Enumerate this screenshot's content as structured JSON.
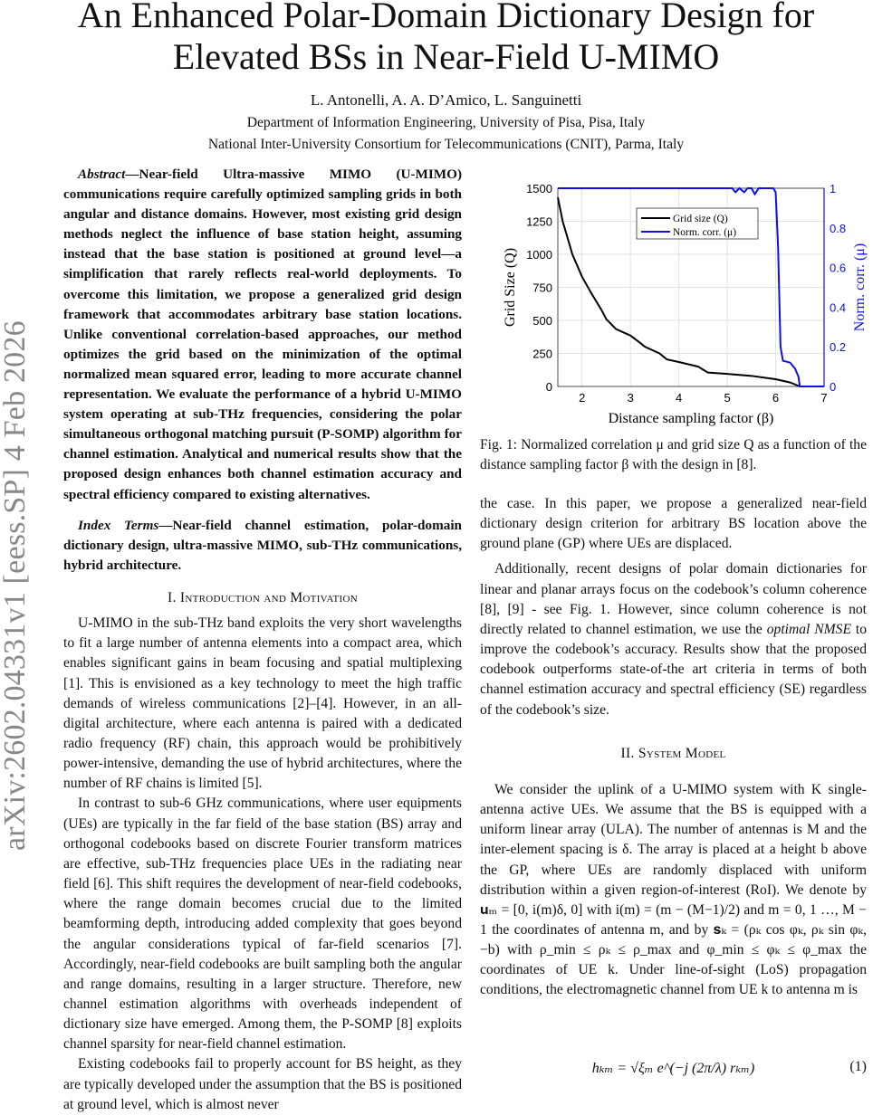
{
  "title_lines": [
    "An Enhanced Polar-Domain Dictionary Design for",
    "Elevated BSs in Near-Field U-MIMO"
  ],
  "authors": "L. Antonelli, A. A. D’Amico, L. Sanguinetti",
  "affiliations": [
    "Department of Information Engineering, University of Pisa, Pisa, Italy",
    "National Inter-University Consortium for Telecommunications (CNIT), Parma, Italy"
  ],
  "arxiv_stamp": "arXiv:2602.04331v1  [eess.SP]  4 Feb 2026",
  "abstract_label": "Abstract",
  "abstract": "—Near-field Ultra-massive MIMO (U-MIMO) communications require carefully optimized sampling grids in both angular and distance domains. However, most existing grid design methods neglect the influence of base station height, assuming instead that the base station is positioned at ground level—a simplification that rarely reflects real-world deployments. To overcome this limitation, we propose a generalized grid design framework that accommodates arbitrary base station locations. Unlike conventional correlation-based approaches, our method optimizes the grid based on the minimization of the optimal normalized mean squared error, leading to more accurate channel representation. We evaluate the performance of a hybrid U-MIMO system operating at sub-THz frequencies, considering the polar simultaneous orthogonal matching pursuit (P-SOMP) algorithm for channel estimation. Analytical and numerical results show that the proposed design enhances both channel estimation accuracy and spectral efficiency compared to existing alternatives.",
  "index_terms_label": "Index Terms",
  "index_terms": "—Near-field channel estimation, polar-domain dictionary design, ultra-massive MIMO, sub-THz communications, hybrid architecture.",
  "section1": {
    "num": "I. ",
    "title": "Introduction and Motivation"
  },
  "left_paragraphs": [
    "U-MIMO in the sub-THz band exploits the very short wavelengths to fit a large number of antenna elements into a compact area, which enables significant gains in beam focusing and spatial multiplexing [1]. This is envisioned as a key technology to meet the high traffic demands of wireless communications [2]–[4]. However, in an all-digital architecture, where each antenna is paired with a dedicated radio frequency (RF) chain, this approach would be prohibitively power-intensive, demanding the use of hybrid architectures, where the number of RF chains is limited [5].",
    "In contrast to sub-6 GHz communications, where user equipments (UEs) are typically in the far field of the base station (BS) array and orthogonal codebooks based on discrete Fourier transform matrices are effective, sub-THz frequencies place UEs in the radiating near field [6]. This shift requires the development of near-field codebooks, where the range domain becomes crucial due to the limited beamforming depth, introducing added complexity that goes beyond the angular considerations typical of far-field scenarios [7]. Accordingly, near-field codebooks are built sampling both the angular and range domains, resulting in a larger structure. Therefore, new channel estimation algorithms with overheads independent of dictionary size have emerged. Among them, the P-SOMP [8] exploits channel sparsity for near-field channel estimation.",
    "Existing codebooks fail to properly account for BS height, as they are typically developed under the assumption that the BS is positioned at ground level, which is almost never"
  ],
  "caption": "Fig. 1: Normalized correlation μ and grid size Q as a function of the distance sampling factor β with the design in [8].",
  "right_p1": "the case. In this paper, we propose a generalized near-field dictionary design criterion for arbitrary BS location above the ground plane (GP) where UEs are displaced.",
  "right_p2a": "Additionally, recent designs of polar domain dictionaries for linear and planar arrays focus on the codebook’s column coherence [8], [9] - see Fig. 1. However, since column coherence is not directly related to channel estimation, we use the ",
  "right_p2_em": "optimal NMSE",
  "right_p2b": " to improve the codebook’s accuracy. Results show that the proposed codebook outperforms state-of-the art criteria in terms of both channel estimation accuracy and spectral efficiency (SE) regardless of the codebook’s size.",
  "section2": {
    "num": "II. ",
    "title": "System Model"
  },
  "right_p3": "We consider the uplink of a U-MIMO system with K single-antenna active UEs. We assume that the BS is equipped with a uniform linear array (ULA). The number of antennas is M and the inter-element spacing is δ. The array is placed at a height b above the GP, where UEs are randomly displaced with uniform distribution within a given region-of-interest (RoI). We denote by 𝐮ₘ = [0, i(m)δ, 0] with i(m) = (m − (M−1)/2) and m = 0, 1 …, M − 1 the coordinates of antenna m, and by 𝐬ₖ = (ρₖ cos φₖ, ρₖ sin φₖ, −b) with ρ_min ≤ ρₖ ≤ ρ_max and φ_min ≤ φₖ ≤ φ_max the coordinates of UE k. Under line-of-sight (LoS) propagation conditions, the electromagnetic channel from UE k to antenna m is",
  "equation": {
    "body": "hₖₘ = √ξₘ e^(−j (2π/λ) rₖₘ)",
    "number": "(1)"
  },
  "chart_data": {
    "type": "line",
    "xlabel": "Distance sampling factor (β)",
    "ylabel": "Grid Size (Q)",
    "y2label": "Norm. corr. (μ)",
    "xlim": [
      1.5,
      7
    ],
    "ylim": [
      0,
      1500
    ],
    "y2lim": [
      0,
      1
    ],
    "xticks": [
      2,
      3,
      4,
      5,
      6,
      7
    ],
    "yticks": [
      0,
      250,
      500,
      750,
      1000,
      1250,
      1500
    ],
    "y2ticks": [
      0,
      0.2,
      0.4,
      0.6,
      0.8,
      1
    ],
    "grid": true,
    "legend_placement": "top-center",
    "series": [
      {
        "name": "Grid size (Q)",
        "axis": "left",
        "color": "#000000",
        "x": [
          1.5,
          1.6,
          1.8,
          2.0,
          2.2,
          2.4,
          2.5,
          2.7,
          3.0,
          3.2,
          3.3,
          3.6,
          3.75,
          4.0,
          4.4,
          4.6,
          5.0,
          5.5,
          6.0,
          6.3,
          6.5
        ],
        "y": [
          1430,
          1250,
          1000,
          830,
          700,
          580,
          510,
          435,
          385,
          330,
          300,
          250,
          205,
          185,
          150,
          105,
          95,
          80,
          55,
          30,
          0
        ]
      },
      {
        "name": "Norm. corr. (μ)",
        "axis": "right",
        "color": "#1010e0",
        "x": [
          1.5,
          5.1,
          5.17,
          5.25,
          5.35,
          5.42,
          5.5,
          5.57,
          5.65,
          5.75,
          5.95,
          6.0,
          6.05,
          6.1,
          6.15,
          6.3,
          6.4,
          6.47,
          6.5,
          7.0
        ],
        "y": [
          1,
          1,
          0.98,
          1,
          0.98,
          1,
          1,
          0.97,
          1,
          1,
          1,
          0.98,
          0.7,
          0.2,
          0.13,
          0.12,
          0.09,
          0.05,
          0,
          0
        ]
      }
    ]
  }
}
